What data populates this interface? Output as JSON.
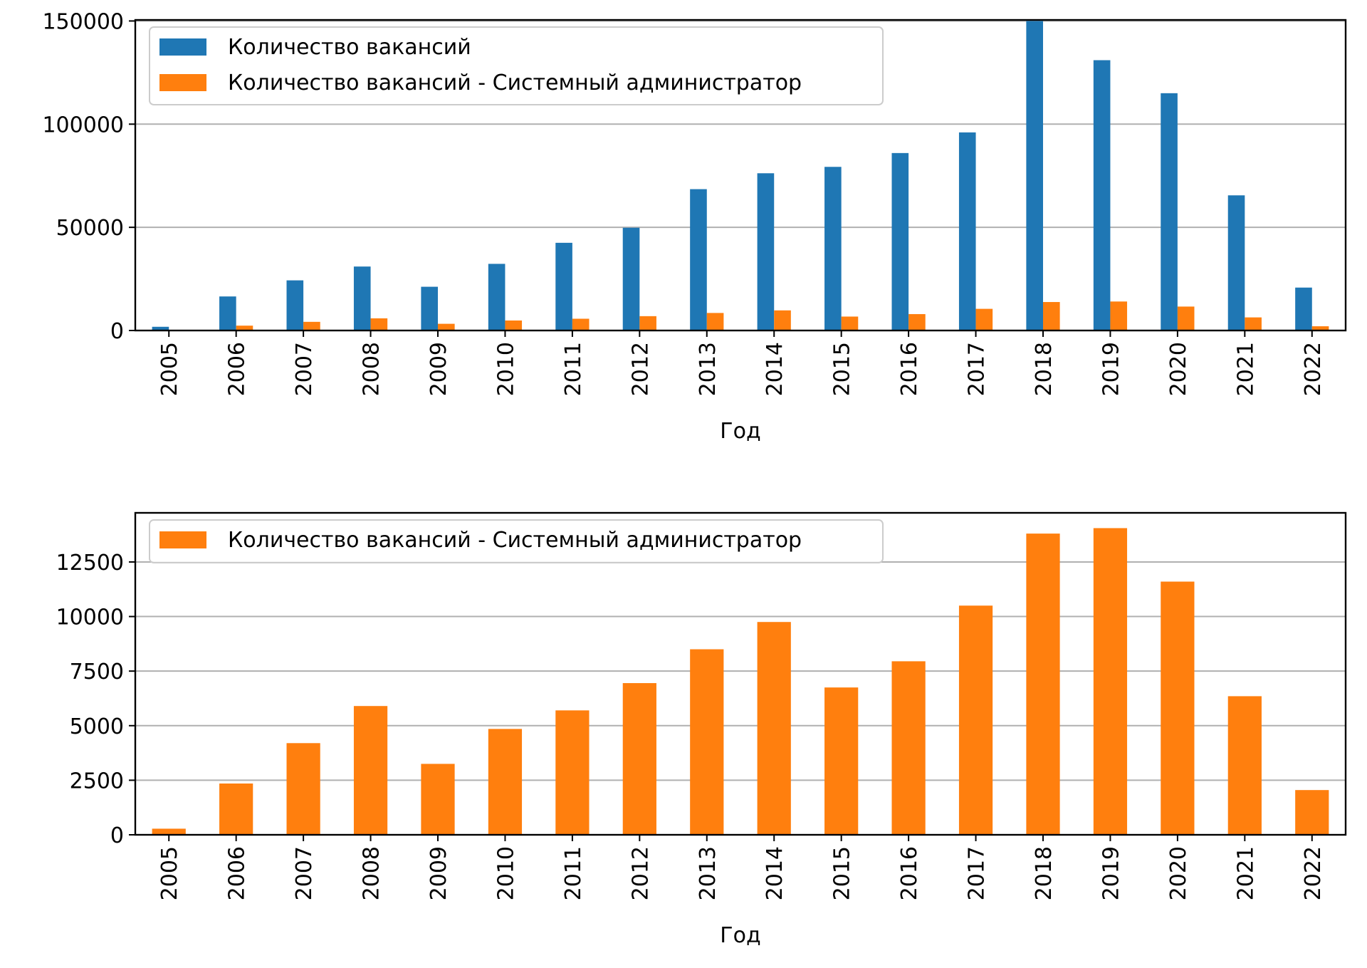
{
  "chart_data": [
    {
      "type": "bar",
      "categories": [
        "2005",
        "2006",
        "2007",
        "2008",
        "2009",
        "2010",
        "2011",
        "2012",
        "2013",
        "2014",
        "2015",
        "2016",
        "2017",
        "2018",
        "2019",
        "2020",
        "2021",
        "2022"
      ],
      "series": [
        {
          "name": "Количество вакансий",
          "color": "#1f77b4",
          "values": [
            1800,
            16500,
            24300,
            31000,
            21200,
            32300,
            42500,
            49800,
            68500,
            76200,
            79300,
            86000,
            96000,
            150000,
            131000,
            115000,
            65500,
            20800
          ]
        },
        {
          "name": "Количество вакансий - Системный администратор",
          "color": "#ff7f0e",
          "values": [
            280,
            2350,
            4200,
            5900,
            3250,
            4850,
            5700,
            6950,
            8500,
            9750,
            6750,
            7950,
            10500,
            13800,
            14050,
            11600,
            6350,
            2050
          ]
        }
      ],
      "yticks": [
        "0",
        "50000",
        "100000",
        "150000"
      ],
      "ylim": [
        0,
        150500
      ],
      "xlabel": "Год",
      "ylabel": "",
      "grid": "horizontal",
      "legend": "top-left"
    },
    {
      "type": "bar",
      "categories": [
        "2005",
        "2006",
        "2007",
        "2008",
        "2009",
        "2010",
        "2011",
        "2012",
        "2013",
        "2014",
        "2015",
        "2016",
        "2017",
        "2018",
        "2019",
        "2020",
        "2021",
        "2022"
      ],
      "series": [
        {
          "name": "Количество вакансий - Системный администратор",
          "color": "#ff7f0e",
          "values": [
            280,
            2350,
            4200,
            5900,
            3250,
            4850,
            5700,
            6950,
            8500,
            9750,
            6750,
            7950,
            10500,
            13800,
            14050,
            11600,
            6350,
            2050
          ]
        }
      ],
      "yticks": [
        "0",
        "2500",
        "5000",
        "7500",
        "10000",
        "12500"
      ],
      "ylim": [
        0,
        14750
      ],
      "xlabel": "Год",
      "ylabel": "",
      "grid": "horizontal",
      "legend": "top-left"
    }
  ]
}
